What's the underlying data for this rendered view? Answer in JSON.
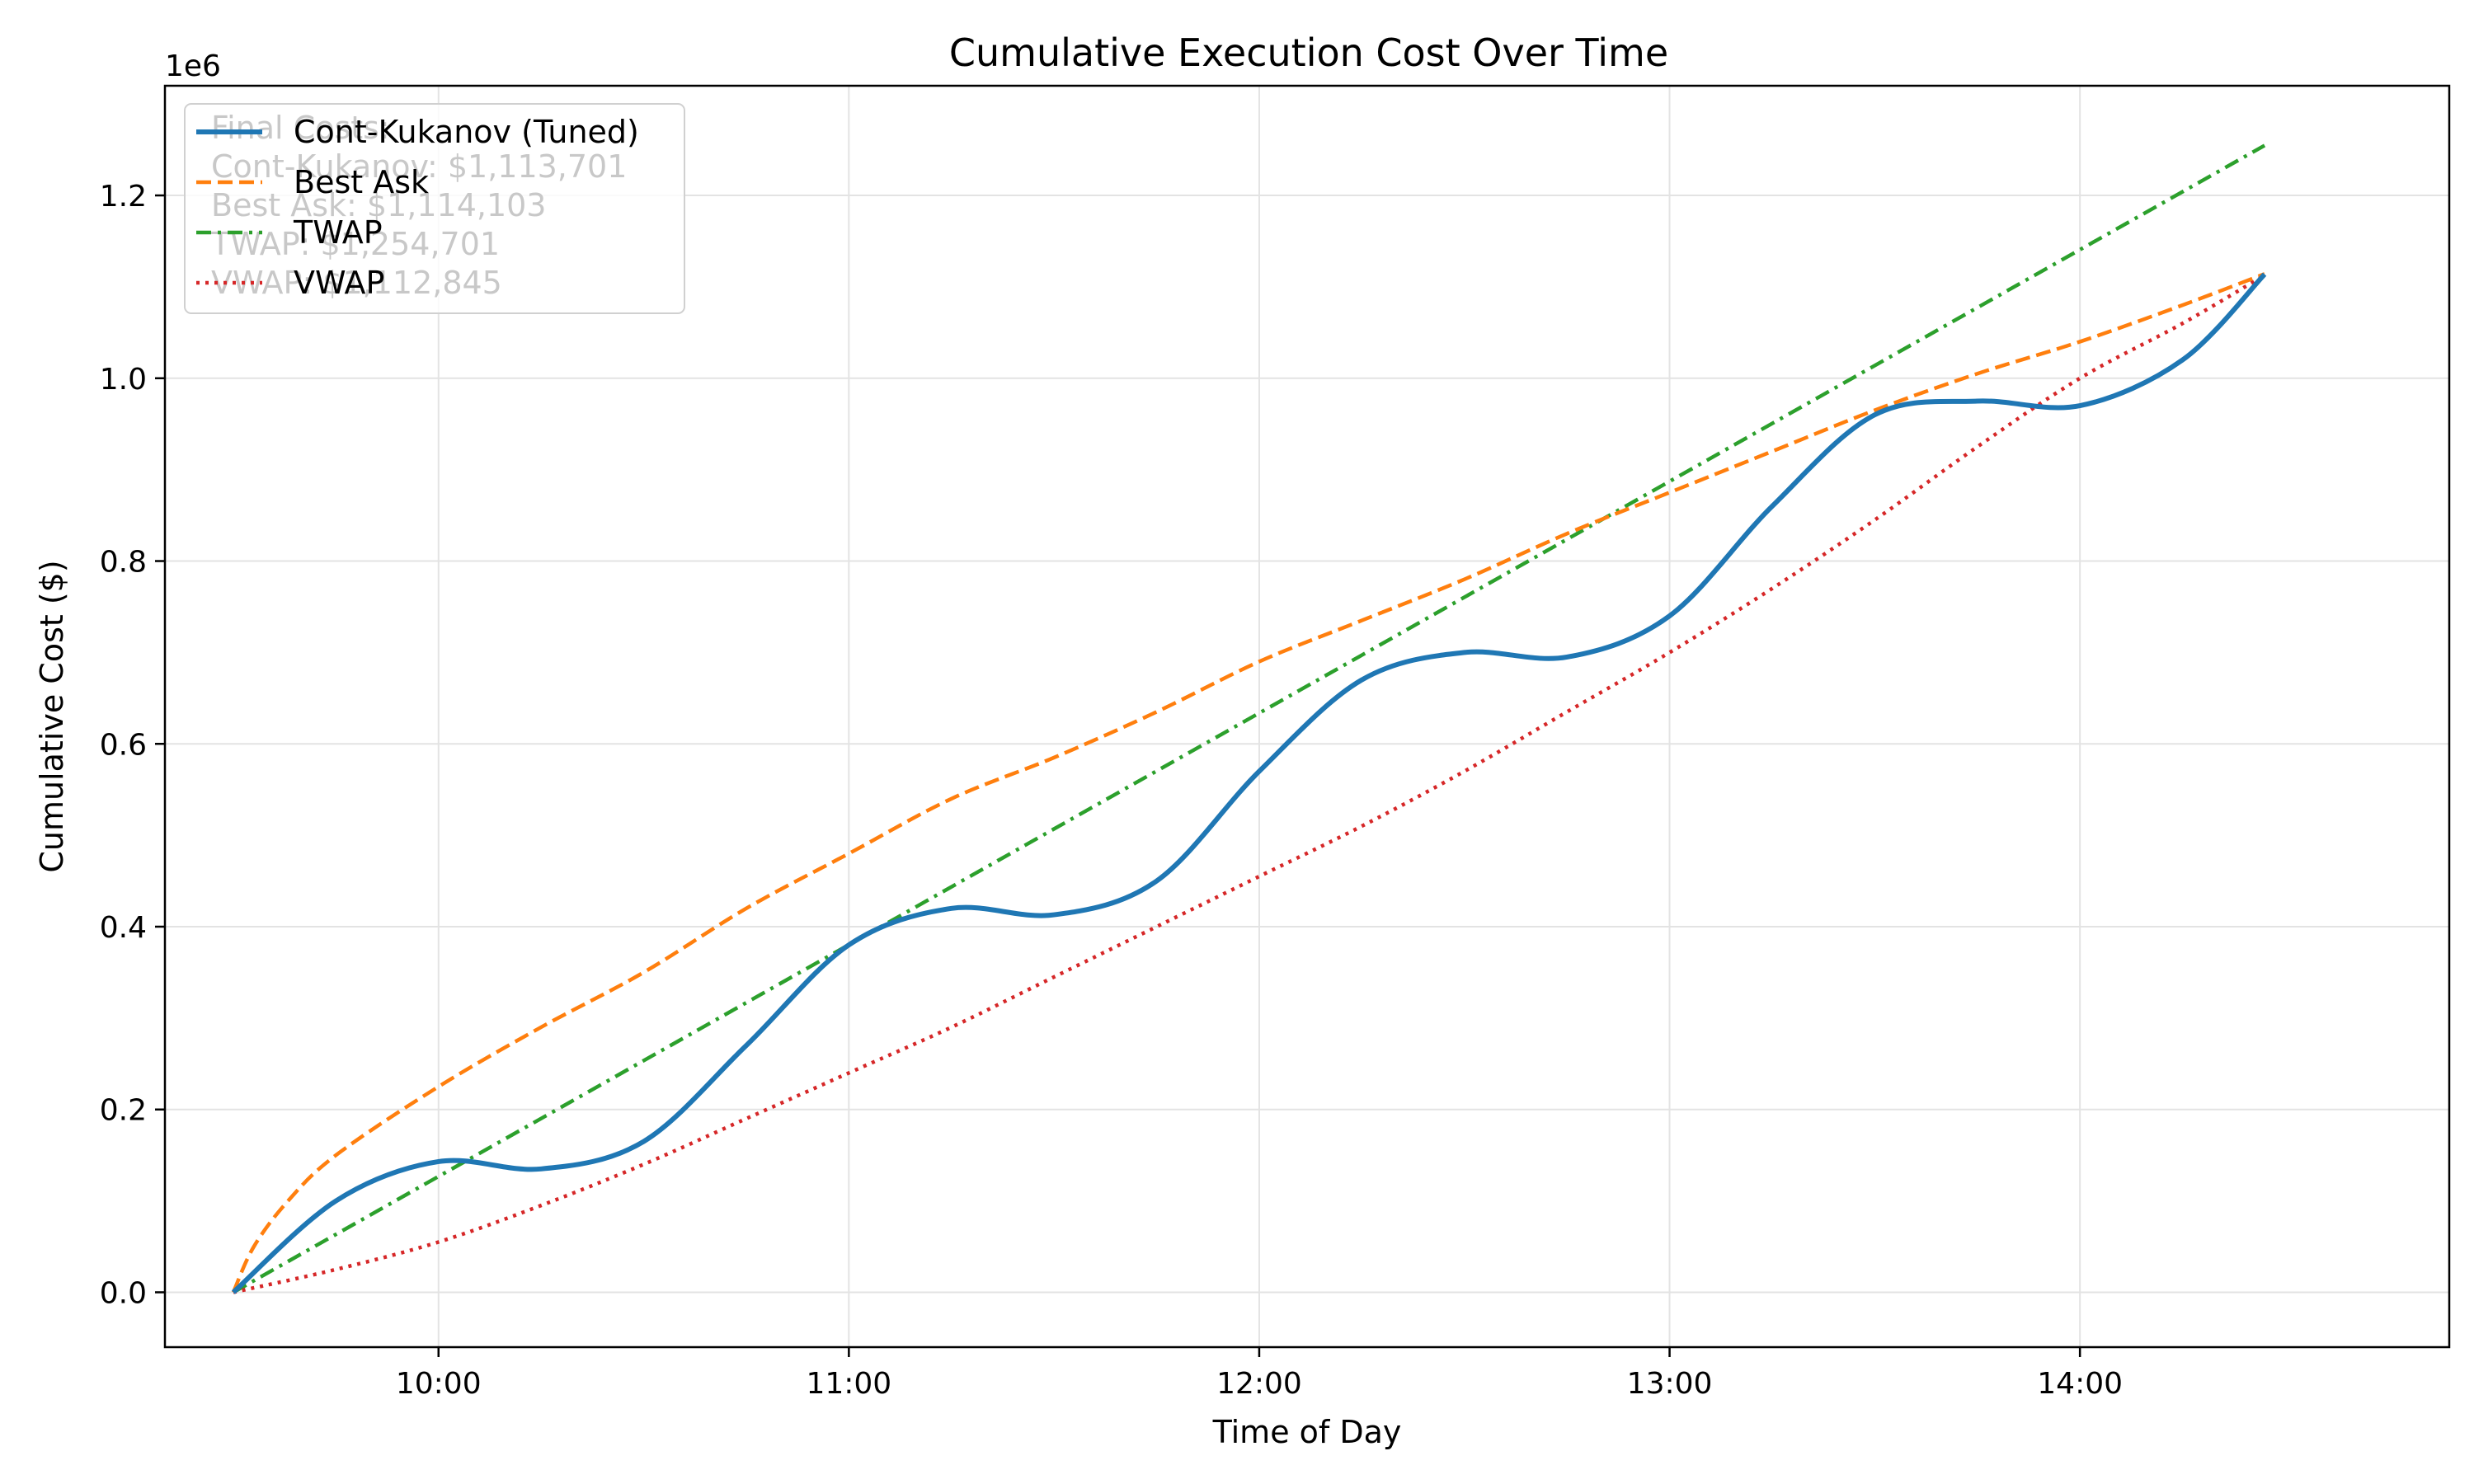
{
  "chart_data": {
    "type": "line",
    "title": "Cumulative Execution Cost Over Time",
    "xlabel": "Time of Day",
    "ylabel": "Cumulative Cost ($)",
    "y_offset_label": "1e6",
    "xlim": [
      "09:20",
      "14:54"
    ],
    "ylim": [
      -0.06,
      1.32
    ],
    "x_ticks": [
      "10:00",
      "11:00",
      "12:00",
      "13:00",
      "14:00"
    ],
    "y_ticks": [
      "0.0",
      "0.2",
      "0.4",
      "0.6",
      "0.8",
      "1.0",
      "1.2"
    ],
    "grid": true,
    "legend_position": "top-left",
    "annotation": [
      "Final Costs:",
      "Cont-Kukanov: $1,113,701",
      "Best Ask: $1,114,103",
      "TWAP: $1,254,701",
      "VWAP: $1,112,845"
    ],
    "series": [
      {
        "name": "Cont-Kukanov (Tuned)",
        "color": "#1f77b4",
        "style": "solid",
        "x": [
          "09:30",
          "09:45",
          "10:00",
          "10:15",
          "10:30",
          "10:45",
          "11:00",
          "11:15",
          "11:30",
          "11:45",
          "12:00",
          "12:15",
          "12:30",
          "12:45",
          "13:00",
          "13:15",
          "13:30",
          "13:45",
          "14:00",
          "14:15",
          "14:27"
        ],
        "values": [
          0.0,
          0.1,
          0.143,
          0.135,
          0.165,
          0.27,
          0.38,
          0.42,
          0.413,
          0.45,
          0.57,
          0.67,
          0.7,
          0.695,
          0.74,
          0.86,
          0.96,
          0.975,
          0.97,
          1.02,
          1.1137
        ]
      },
      {
        "name": "Best Ask",
        "color": "#ff7f0e",
        "style": "dashed",
        "x": [
          "09:30",
          "09:33",
          "09:38",
          "09:45",
          "10:00",
          "10:15",
          "10:30",
          "10:45",
          "11:00",
          "11:15",
          "11:30",
          "11:45",
          "12:00",
          "12:15",
          "12:30",
          "12:45",
          "13:00",
          "13:15",
          "13:30",
          "13:45",
          "14:00",
          "14:15",
          "14:27"
        ],
        "values": [
          0.0,
          0.05,
          0.1,
          0.15,
          0.225,
          0.29,
          0.35,
          0.42,
          0.48,
          0.54,
          0.585,
          0.635,
          0.69,
          0.735,
          0.78,
          0.83,
          0.875,
          0.92,
          0.965,
          1.005,
          1.04,
          1.08,
          1.1141
        ]
      },
      {
        "name": "TWAP",
        "color": "#2ca02c",
        "style": "dashdot",
        "x": [
          "09:30",
          "14:27"
        ],
        "values": [
          0.0,
          1.2547
        ]
      },
      {
        "name": "VWAP",
        "color": "#d62728",
        "style": "dotted",
        "x": [
          "09:30",
          "09:45",
          "10:00",
          "10:15",
          "10:30",
          "10:45",
          "11:00",
          "11:15",
          "11:30",
          "11:45",
          "12:00",
          "12:15",
          "12:30",
          "12:45",
          "13:00",
          "13:15",
          "13:30",
          "13:45",
          "14:00",
          "14:15",
          "14:27"
        ],
        "values": [
          0.0,
          0.025,
          0.055,
          0.095,
          0.14,
          0.19,
          0.24,
          0.29,
          0.345,
          0.4,
          0.455,
          0.51,
          0.57,
          0.635,
          0.7,
          0.77,
          0.845,
          0.925,
          1.0,
          1.06,
          1.1128
        ]
      }
    ]
  }
}
